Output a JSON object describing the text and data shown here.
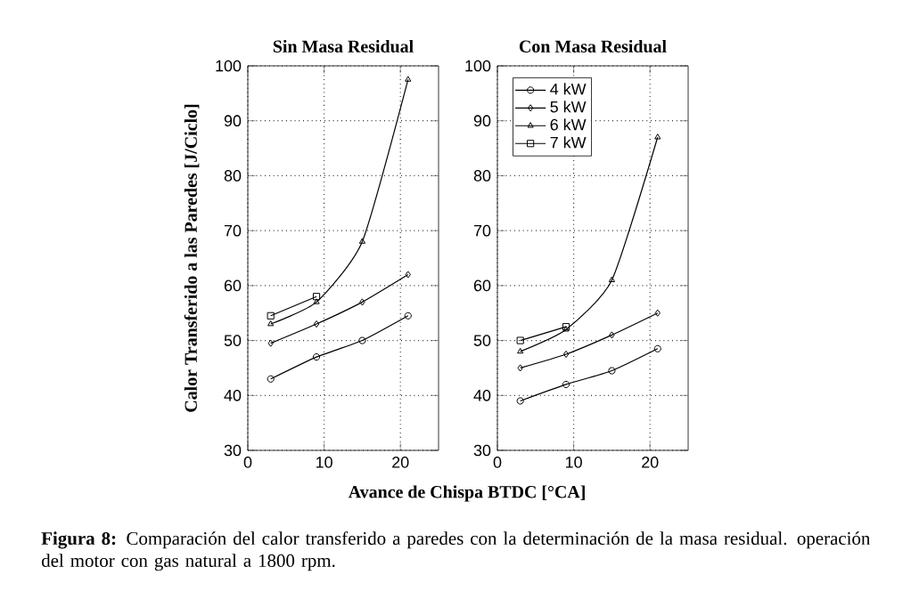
{
  "chart_data": [
    {
      "type": "line",
      "title": "Sin Masa Residual",
      "xlabel": "Avance de Chispa BTDC [°CA]",
      "ylabel": "Calor Transferido a las Paredes [J/Ciclo]",
      "x": [
        3,
        9,
        15,
        21
      ],
      "xlim": [
        0,
        25
      ],
      "ylim": [
        30,
        100
      ],
      "xticks": [
        0,
        10,
        20
      ],
      "yticks": [
        30,
        40,
        50,
        60,
        70,
        80,
        90,
        100
      ],
      "grid": true,
      "legend": false,
      "line_style": "solid",
      "series": [
        {
          "color": "#000000",
          "marker": "circle",
          "values": [
            43,
            47,
            50,
            54.5
          ]
        },
        {
          "color": "#000000",
          "marker": "diamond",
          "values": [
            49.5,
            53,
            57,
            62
          ]
        },
        {
          "color": "#000000",
          "marker": "triangle",
          "values": [
            53,
            57,
            68,
            97.5
          ]
        },
        {
          "color": "#000000",
          "marker": "square",
          "values": [
            54.5,
            58,
            null,
            null
          ]
        }
      ],
      "annotations": [
        "**Figura 8:** Comparación del calor transferido a paredes con la determinación de la masa residual. operación del motor con gas natural a 1800 rpm."
      ]
    },
    {
      "type": "line",
      "title": "Con Masa Residual",
      "x": [
        3,
        9,
        15,
        21
      ],
      "xlim": [
        0,
        25
      ],
      "ylim": [
        30,
        100
      ],
      "xticks": [
        0,
        10,
        20
      ],
      "yticks": [
        30,
        40,
        50,
        60,
        70,
        80,
        90,
        100
      ],
      "grid": true,
      "legend": "top left",
      "line_style": "solid",
      "series": [
        {
          "name": "4 kW",
          "color": "#000000",
          "marker": "circle",
          "values": [
            39,
            42,
            44.5,
            48.5
          ]
        },
        {
          "name": "5 kW",
          "color": "#000000",
          "marker": "diamond",
          "values": [
            45,
            47.5,
            51,
            55
          ]
        },
        {
          "name": "6 kW",
          "color": "#000000",
          "marker": "triangle",
          "values": [
            48,
            52,
            61,
            87
          ]
        },
        {
          "name": "7 kW",
          "color": "#000000",
          "marker": "square",
          "values": [
            50,
            52.5,
            null,
            null
          ]
        }
      ]
    }
  ]
}
